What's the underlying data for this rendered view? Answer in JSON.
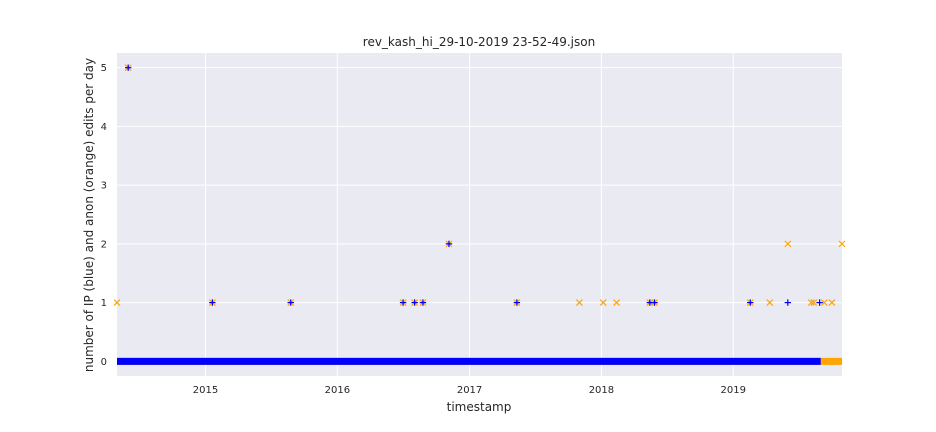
{
  "chart_data": {
    "type": "scatter",
    "title": "rev_kash_hi_29-10-2019 23-52-49.json",
    "xlabel": "timestamp",
    "ylabel": "number of IP (blue) and anon (orange) edits per day",
    "x_axis_type": "date",
    "xlim": [
      "2014-05-01",
      "2019-10-29"
    ],
    "ylim": [
      -0.25,
      5.25
    ],
    "x_ticks": [
      "2015",
      "2016",
      "2017",
      "2018",
      "2019"
    ],
    "x_tick_dates": [
      "2015-01-01",
      "2016-01-01",
      "2017-01-01",
      "2018-01-01",
      "2019-01-01"
    ],
    "y_ticks": [
      0,
      1,
      2,
      3,
      4,
      5
    ],
    "grid": true,
    "background_color": "#eaeaf2",
    "series": [
      {
        "color": "#0000ff",
        "marker": "+",
        "zero_line": {
          "start": "2014-05-01",
          "end": "2019-08-31",
          "value": 0
        },
        "points": [
          {
            "x": "2014-06-01",
            "y": 5
          },
          {
            "x": "2015-01-20",
            "y": 1
          },
          {
            "x": "2015-08-25",
            "y": 1
          },
          {
            "x": "2016-07-01",
            "y": 1
          },
          {
            "x": "2016-08-02",
            "y": 1
          },
          {
            "x": "2016-08-25",
            "y": 1
          },
          {
            "x": "2016-11-05",
            "y": 2
          },
          {
            "x": "2017-05-12",
            "y": 1
          },
          {
            "x": "2018-05-15",
            "y": 1
          },
          {
            "x": "2018-05-28",
            "y": 1
          },
          {
            "x": "2019-02-17",
            "y": 1
          },
          {
            "x": "2019-06-01",
            "y": 1
          },
          {
            "x": "2019-08-28",
            "y": 1
          }
        ]
      },
      {
        "color": "#ffa500",
        "marker": "x",
        "zero_line": {
          "start": "2014-05-01",
          "end": "2019-10-29",
          "value": 0
        },
        "points": [
          {
            "x": "2014-05-01",
            "y": 1
          },
          {
            "x": "2014-06-01",
            "y": 5
          },
          {
            "x": "2015-01-20",
            "y": 1
          },
          {
            "x": "2015-08-25",
            "y": 1
          },
          {
            "x": "2016-07-01",
            "y": 1
          },
          {
            "x": "2016-08-02",
            "y": 1
          },
          {
            "x": "2016-08-25",
            "y": 1
          },
          {
            "x": "2016-11-05",
            "y": 2
          },
          {
            "x": "2017-05-12",
            "y": 1
          },
          {
            "x": "2017-11-01",
            "y": 1
          },
          {
            "x": "2018-01-06",
            "y": 1
          },
          {
            "x": "2018-02-12",
            "y": 1
          },
          {
            "x": "2018-05-15",
            "y": 1
          },
          {
            "x": "2018-05-28",
            "y": 1
          },
          {
            "x": "2019-02-17",
            "y": 1
          },
          {
            "x": "2019-04-12",
            "y": 1
          },
          {
            "x": "2019-06-01",
            "y": 2
          },
          {
            "x": "2019-08-05",
            "y": 1
          },
          {
            "x": "2019-08-12",
            "y": 1
          },
          {
            "x": "2019-09-10",
            "y": 1
          },
          {
            "x": "2019-10-01",
            "y": 1
          },
          {
            "x": "2019-10-29",
            "y": 2
          }
        ]
      }
    ]
  }
}
